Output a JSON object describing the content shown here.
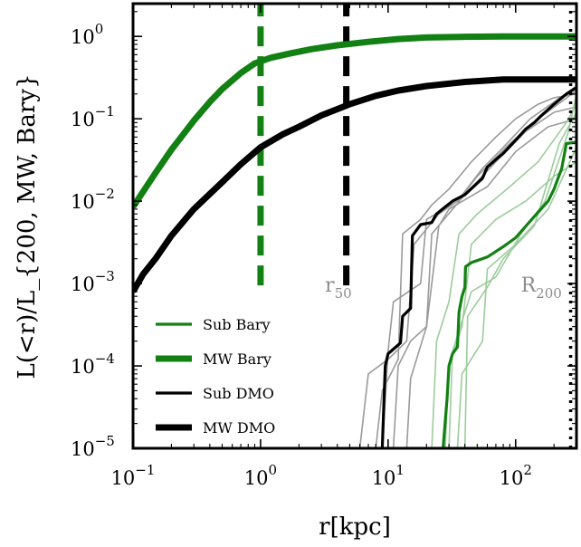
{
  "chart_data": {
    "type": "line",
    "xlabel": "r[kpc]",
    "ylabel": "L(<r)/L_{200, MW, Bary}",
    "xscale": "log",
    "yscale": "log",
    "xlim": [
      0.1,
      300
    ],
    "ylim": [
      1e-05,
      2.5
    ],
    "grid": false,
    "legend_position": "lower-left",
    "x_ticks": [
      {
        "value": 0.1,
        "base": "10",
        "exp": "−1"
      },
      {
        "value": 1,
        "base": "10",
        "exp": "0"
      },
      {
        "value": 10,
        "base": "10",
        "exp": "1"
      },
      {
        "value": 100,
        "base": "10",
        "exp": "2"
      }
    ],
    "y_ticks": [
      {
        "value": 1e-05,
        "base": "10",
        "exp": "−5"
      },
      {
        "value": 0.0001,
        "base": "10",
        "exp": "−4"
      },
      {
        "value": 0.001,
        "base": "10",
        "exp": "−3"
      },
      {
        "value": 0.01,
        "base": "10",
        "exp": "−2"
      },
      {
        "value": 0.1,
        "base": "10",
        "exp": "−1"
      },
      {
        "value": 1,
        "base": "10",
        "exp": "0"
      }
    ],
    "series": [
      {
        "name": "MW Bary",
        "color": "#128012",
        "width": 7,
        "x": [
          0.1,
          0.15,
          0.2,
          0.3,
          0.4,
          0.5,
          0.7,
          0.9,
          1.2,
          1.7,
          2.5,
          4,
          7,
          12,
          20,
          40,
          80,
          150,
          300
        ],
        "y": [
          0.0085,
          0.022,
          0.042,
          0.095,
          0.16,
          0.23,
          0.36,
          0.47,
          0.55,
          0.62,
          0.7,
          0.78,
          0.86,
          0.93,
          0.97,
          0.99,
          1.0,
          1.0,
          1.0
        ]
      },
      {
        "name": "MW DMO",
        "color": "#000000",
        "width": 7,
        "x": [
          0.1,
          0.12,
          0.15,
          0.2,
          0.3,
          0.5,
          0.7,
          1,
          1.5,
          2,
          3,
          5,
          8,
          12,
          20,
          40,
          80,
          150,
          300
        ],
        "y": [
          0.0008,
          0.0013,
          0.002,
          0.0038,
          0.008,
          0.017,
          0.028,
          0.045,
          0.065,
          0.08,
          0.11,
          0.15,
          0.19,
          0.22,
          0.25,
          0.28,
          0.3,
          0.3,
          0.3
        ]
      },
      {
        "name": "Sub DMO",
        "color": "#000000",
        "width": 3.2,
        "x": [
          9,
          9.5,
          10,
          11,
          12.5,
          13,
          15,
          15.5,
          18,
          22,
          24,
          28,
          32,
          40,
          55,
          60,
          70,
          80,
          100,
          120,
          140,
          160,
          200,
          250,
          300
        ],
        "y": [
          1e-05,
          0.0001,
          0.00014,
          0.00016,
          0.00019,
          0.0004,
          0.0005,
          0.0038,
          0.0052,
          0.0055,
          0.007,
          0.0085,
          0.01,
          0.012,
          0.019,
          0.026,
          0.032,
          0.038,
          0.055,
          0.075,
          0.09,
          0.11,
          0.15,
          0.2,
          0.24
        ]
      },
      {
        "name": "Sub Bary",
        "color": "#128012",
        "width": 3.2,
        "x": [
          27,
          29,
          30,
          32,
          35,
          36,
          38,
          40,
          40.5,
          45,
          50,
          60,
          80,
          100,
          140,
          180,
          200,
          230,
          250,
          300
        ],
        "y": [
          1e-05,
          4e-05,
          0.0001,
          0.00014,
          0.00017,
          0.00045,
          0.0007,
          0.0009,
          0.0016,
          0.0018,
          0.0019,
          0.0021,
          0.0028,
          0.0036,
          0.0065,
          0.01,
          0.014,
          0.025,
          0.05,
          0.052
        ]
      }
    ],
    "background_lines": [
      {
        "color": "#9a9a9a",
        "width": 1.6,
        "x": [
          8,
          9,
          12,
          13,
          18,
          22,
          30,
          45,
          70,
          100,
          150,
          200,
          300
        ],
        "y": [
          1e-05,
          5e-05,
          0.00012,
          0.004,
          0.006,
          0.009,
          0.014,
          0.03,
          0.06,
          0.1,
          0.15,
          0.18,
          0.2
        ]
      },
      {
        "color": "#9a9a9a",
        "width": 1.6,
        "x": [
          6,
          7,
          10,
          14,
          16,
          25,
          35,
          50,
          90,
          150,
          300
        ],
        "y": [
          1e-05,
          8e-05,
          0.00012,
          0.0002,
          0.003,
          0.007,
          0.01,
          0.02,
          0.05,
          0.1,
          0.22
        ]
      },
      {
        "color": "#9a9a9a",
        "width": 1.6,
        "x": [
          11,
          12,
          15,
          20,
          22,
          40,
          70,
          120,
          200,
          300
        ],
        "y": [
          1e-05,
          0.0001,
          0.0002,
          0.0003,
          0.004,
          0.012,
          0.03,
          0.07,
          0.12,
          0.14
        ]
      },
      {
        "color": "#9a9a9a",
        "width": 1.6,
        "x": [
          14,
          15,
          20,
          25,
          30,
          60,
          100,
          180,
          300
        ],
        "y": [
          1e-05,
          7e-05,
          0.0003,
          0.005,
          0.008,
          0.015,
          0.04,
          0.08,
          0.1
        ]
      },
      {
        "color": "#9a9a9a",
        "width": 1.6,
        "x": [
          9,
          10,
          11,
          18,
          20,
          35,
          55,
          80,
          130,
          200,
          300
        ],
        "y": [
          1e-05,
          0.00015,
          0.0006,
          0.001,
          0.006,
          0.01,
          0.025,
          0.045,
          0.1,
          0.16,
          0.25
        ]
      },
      {
        "color": "#9ccc9c",
        "width": 1.6,
        "x": [
          28,
          30,
          38,
          45,
          70,
          120,
          200,
          300
        ],
        "y": [
          1e-05,
          0.0001,
          0.0003,
          0.003,
          0.006,
          0.01,
          0.02,
          0.03
        ]
      },
      {
        "color": "#9ccc9c",
        "width": 1.6,
        "x": [
          22,
          24,
          30,
          36,
          50,
          90,
          150,
          250,
          300
        ],
        "y": [
          1e-05,
          0.0002,
          0.0006,
          0.004,
          0.007,
          0.015,
          0.03,
          0.09,
          0.15
        ]
      },
      {
        "color": "#9ccc9c",
        "width": 1.6,
        "x": [
          35,
          38,
          55,
          60,
          100,
          180,
          300
        ],
        "y": [
          1e-05,
          8e-05,
          0.0002,
          0.0015,
          0.003,
          0.008,
          0.045
        ]
      },
      {
        "color": "#9ccc9c",
        "width": 1.6,
        "x": [
          40,
          42,
          60,
          80,
          140,
          220,
          300
        ],
        "y": [
          1e-05,
          0.0004,
          0.0009,
          0.002,
          0.005,
          0.05,
          0.12
        ]
      },
      {
        "color": "#9ccc9c",
        "width": 1.6,
        "x": [
          30,
          32,
          45,
          70,
          110,
          170,
          260,
          300
        ],
        "y": [
          1e-05,
          0.00015,
          0.0008,
          0.0012,
          0.004,
          0.01,
          0.07,
          0.2
        ]
      }
    ],
    "vlines": [
      {
        "x": 1.0,
        "y0": 0.00095,
        "y1": 2.5,
        "color": "#128012",
        "dash": "22,11",
        "width": 7
      },
      {
        "x": 4.7,
        "y0": 0.00095,
        "y1": 2.5,
        "color": "#000000",
        "dash": "22,11",
        "width": 7
      },
      {
        "x": 270,
        "y0": 1e-05,
        "y1": 2.5,
        "color": "#000000",
        "dash": "3,7",
        "width": 3.5
      }
    ],
    "annotations": [
      {
        "id": "r50",
        "main": "r",
        "sub": "50",
        "x": 3.2,
        "y": 0.00095
      },
      {
        "id": "R200",
        "main": "R",
        "sub": "200",
        "x": 110,
        "y": 0.00095
      }
    ],
    "legend": [
      {
        "label": "Sub Bary",
        "color": "#128012",
        "width": 3.2
      },
      {
        "label": "MW Bary",
        "color": "#128012",
        "width": 7
      },
      {
        "label": "Sub DMO",
        "color": "#000000",
        "width": 3.2
      },
      {
        "label": "MW DMO",
        "color": "#000000",
        "width": 7
      }
    ]
  }
}
